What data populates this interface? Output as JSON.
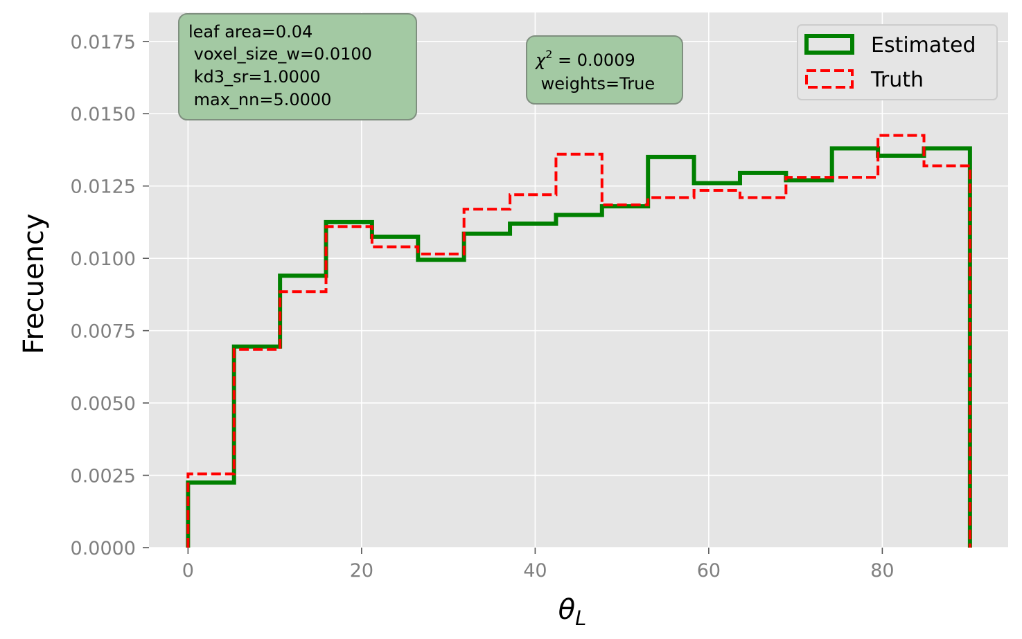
{
  "chart_data": {
    "type": "step-histogram",
    "xlabel": "θ_L",
    "xlabel_main": "θ",
    "xlabel_sub": "L",
    "ylabel": "Frecuency",
    "xlim": [
      -4.5,
      94.5
    ],
    "ylim": [
      0,
      0.0185
    ],
    "xticks": [
      0,
      20,
      40,
      60,
      80
    ],
    "xtick_labels": [
      "0",
      "20",
      "40",
      "60",
      "80"
    ],
    "yticks": [
      0,
      0.0025,
      0.005,
      0.0075,
      0.01,
      0.0125,
      0.015,
      0.0175
    ],
    "ytick_labels": [
      "0.0000",
      "0.0025",
      "0.0050",
      "0.0075",
      "0.0100",
      "0.0125",
      "0.0150",
      "0.0175"
    ],
    "grid": true,
    "legend_position": "top-right",
    "bin_edges": [
      0,
      5.3,
      10.6,
      15.9,
      21.2,
      26.5,
      31.8,
      37.1,
      42.4,
      47.7,
      53.0,
      58.3,
      63.6,
      68.9,
      74.2,
      79.5,
      84.8,
      90.1
    ],
    "series": [
      {
        "name": "Estimated",
        "color": "#008000",
        "style": "solid",
        "values": [
          0.00225,
          0.00695,
          0.0094,
          0.01125,
          0.01075,
          0.00995,
          0.01085,
          0.0112,
          0.0115,
          0.0118,
          0.0135,
          0.0126,
          0.01295,
          0.0127,
          0.0138,
          0.01355,
          0.0138
        ]
      },
      {
        "name": "Truth",
        "color": "#ff0000",
        "style": "dashed",
        "values": [
          0.00255,
          0.00685,
          0.00885,
          0.0111,
          0.0104,
          0.01015,
          0.0117,
          0.0122,
          0.0136,
          0.01185,
          0.0121,
          0.01235,
          0.0121,
          0.0128,
          0.0128,
          0.01425,
          0.0132
        ]
      }
    ],
    "annotations": {
      "box1_lines": [
        "leaf area=0.04",
        " voxel_size_w=0.0100",
        " kd3_sr=1.0000",
        " max_nn=5.0000"
      ],
      "box2_chi_symbol": "χ",
      "box2_chi_sup": "2",
      "box2_chi_value": " = 0.0009",
      "box2_line2": " weights=True"
    }
  },
  "colors": {
    "plot_background": "#e5e5e5",
    "grid": "#ffffff",
    "annotation_box": "#a3c9a3",
    "tick_label": "#7f7f7f"
  }
}
